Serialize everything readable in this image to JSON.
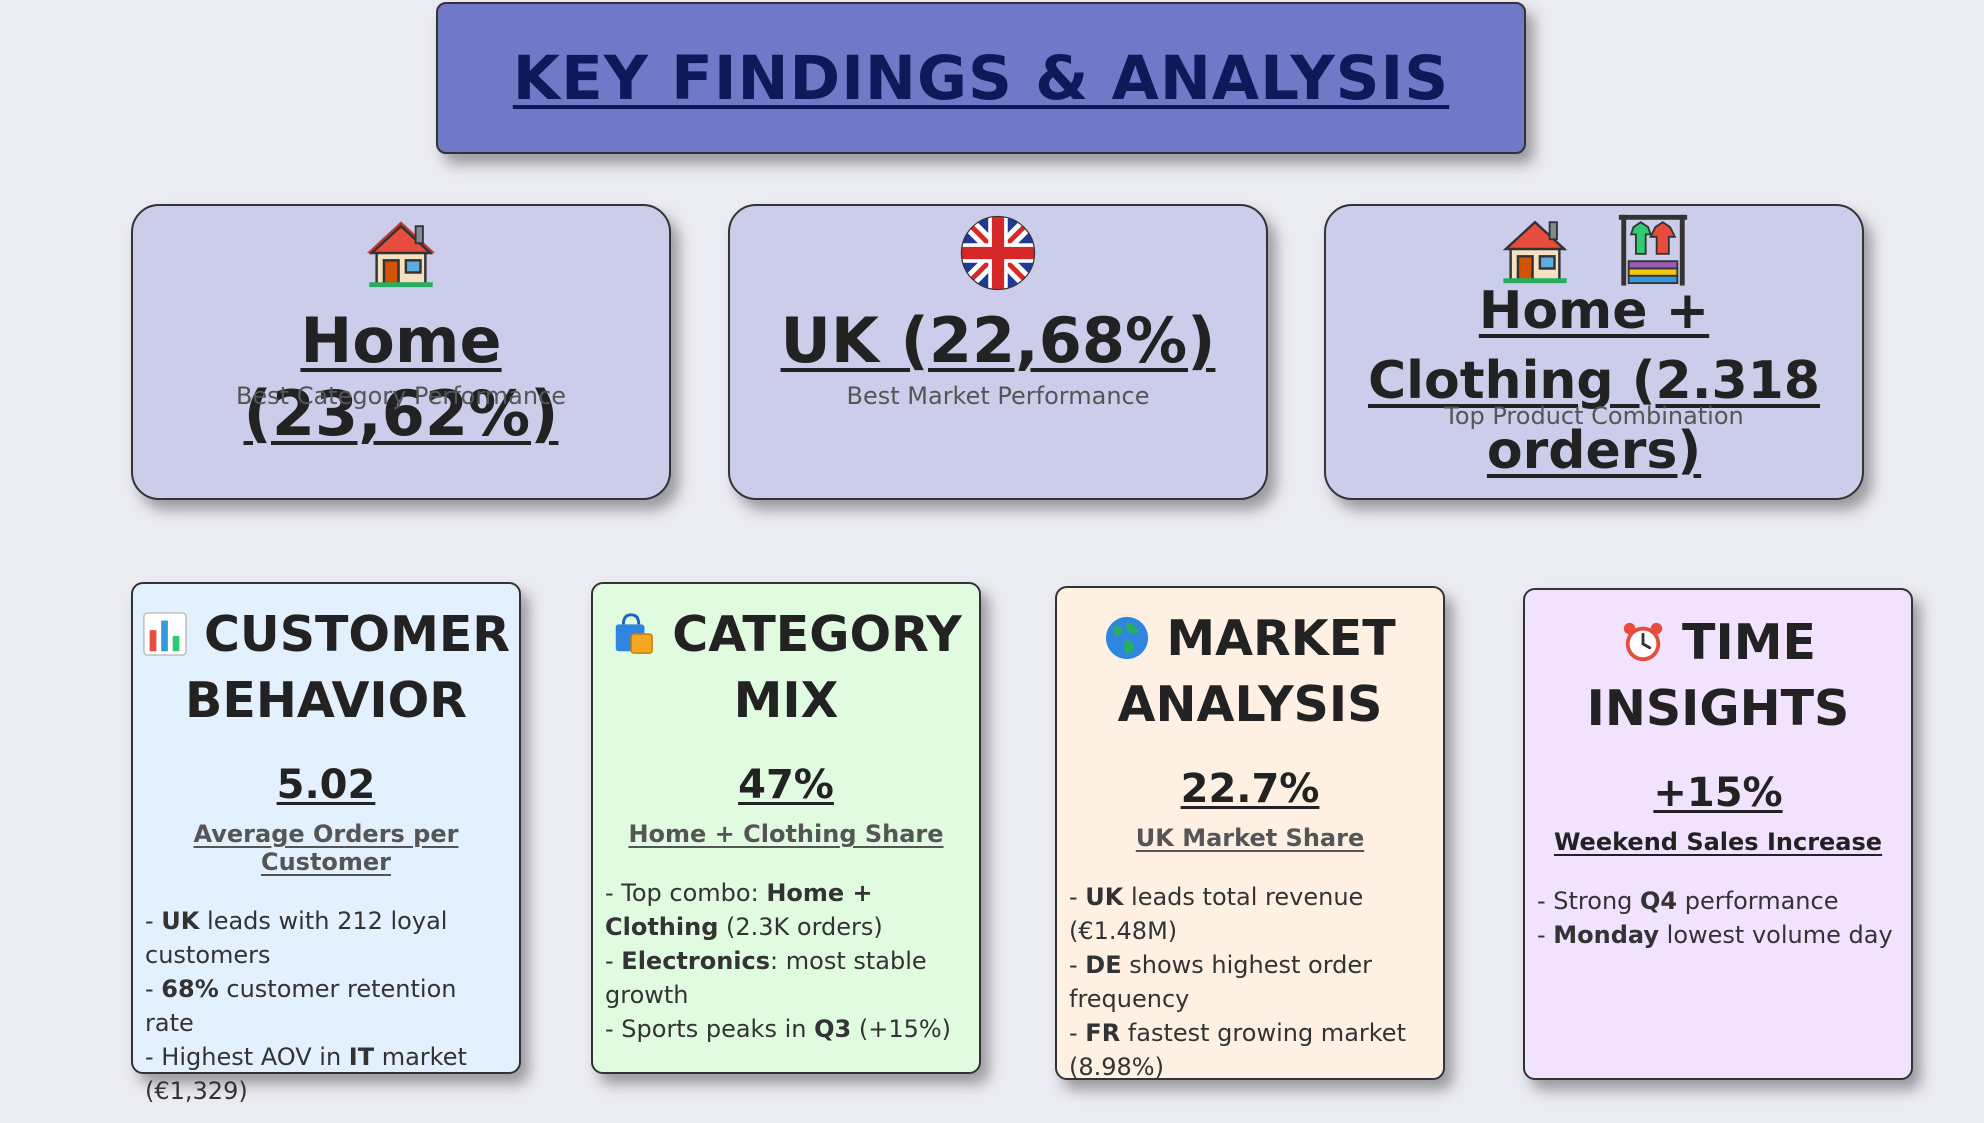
{
  "title": "KEY FINDINGS & ANALYSIS",
  "kpis": [
    {
      "value": "Home (23,62%)",
      "label": "Best Category Performance",
      "icons": [
        "house-icon"
      ]
    },
    {
      "value": "UK (22,68%)",
      "label": "Best Market Performance",
      "icons": [
        "uk-flag-icon"
      ]
    },
    {
      "value": "Home + Clothing (2.318 orders)",
      "label": "Top Product Combination",
      "icons": [
        "house-icon",
        "clothing-rack-icon"
      ]
    }
  ],
  "cards": [
    {
      "icon": "bar-chart-icon",
      "heading": "CUSTOMER BEHAVIOR",
      "metric": "5.02",
      "metric_label": "Average Orders per Customer",
      "bullets": [
        [
          "- ",
          "UK",
          " leads with 212 loyal customers"
        ],
        [
          "- ",
          "68%",
          " customer retention rate"
        ],
        [
          "- Highest AOV in ",
          "IT",
          " market (€1,329)"
        ]
      ]
    },
    {
      "icon": "shopping-bags-icon",
      "heading": "CATEGORY MIX",
      "metric": "47%",
      "metric_label": "Home + Clothing Share",
      "bullets": [
        [
          "- Top combo: ",
          "Home + Clothing",
          " (2.3K orders)"
        ],
        [
          "- ",
          "Electronics",
          ": most stable growth"
        ],
        [
          "- Sports peaks in ",
          "Q3",
          " (+15%)"
        ]
      ]
    },
    {
      "icon": "globe-icon",
      "heading": "MARKET ANALYSIS",
      "metric": "22.7%",
      "metric_label": "UK Market Share",
      "bullets": [
        [
          "- ",
          "UK",
          " leads total revenue (€1.48M)"
        ],
        [
          "- ",
          "DE",
          " shows highest order frequency"
        ],
        [
          "- ",
          "FR",
          " fastest growing market (8.98%)"
        ]
      ]
    },
    {
      "icon": "alarm-clock-icon",
      "heading": "TIME INSIGHTS",
      "metric": "+15%",
      "metric_label": "Weekend Sales Increase",
      "bullets": [
        [
          "- Strong ",
          "Q4",
          " performance"
        ],
        [
          "- ",
          "Monday",
          " lowest volume day"
        ]
      ]
    }
  ],
  "colors": {
    "title_bg": "#6f79c7",
    "title_text": "#0d1a5a",
    "kpi_bg": "#cbcdea",
    "card_blue": "#e3f0fe",
    "card_green": "#e1fbe1",
    "card_orange": "#fef0e3",
    "card_purple": "#f1e3fd"
  }
}
